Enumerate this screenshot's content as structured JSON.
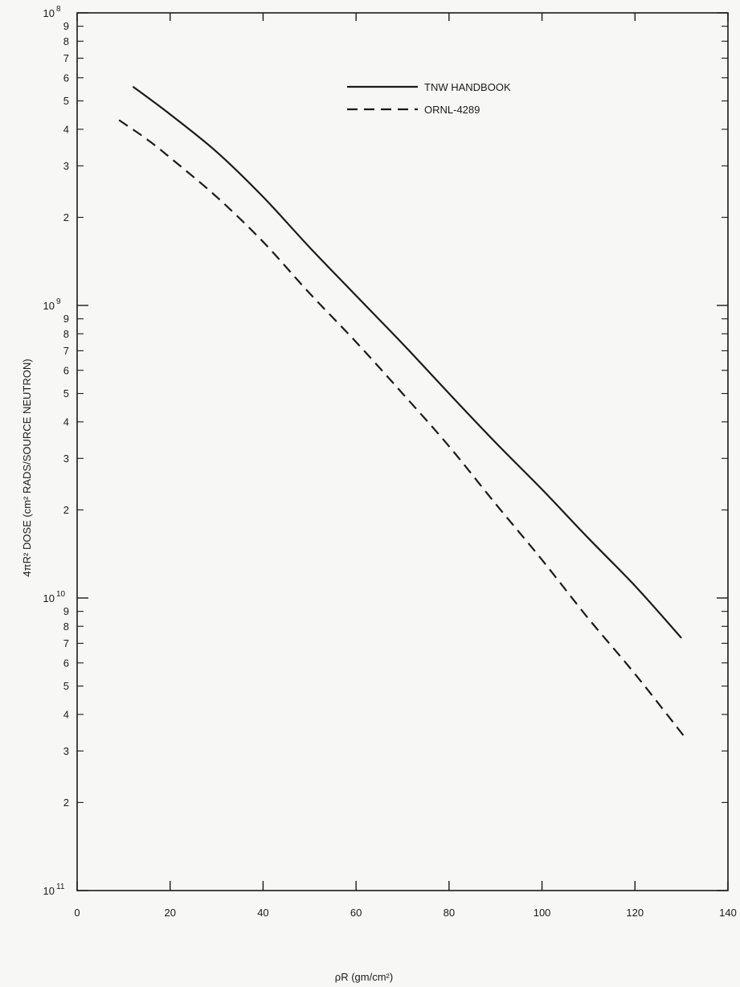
{
  "chart_data": {
    "type": "line",
    "title": "",
    "xlabel": "ρR (gm/cm²)",
    "ylabel": "4πR² DOSE (cm² RADS/SOURCE NEUTRON)",
    "xlim": [
      0,
      140
    ],
    "ylim": [
      1e-11,
      1e-08
    ],
    "yscale": "log",
    "grid": false,
    "legend_position": "top-center",
    "x_ticks": [
      0,
      20,
      40,
      60,
      80,
      100,
      120,
      140
    ],
    "y_decades": [
      {
        "mantissa": "10",
        "exponent": "8",
        "value": 1e-08
      },
      {
        "mantissa": "10",
        "exponent": "9",
        "value": 1e-09
      },
      {
        "mantissa": "10",
        "exponent": "10",
        "value": 1e-10
      },
      {
        "mantissa": "10",
        "exponent": "11",
        "value": 1e-11
      }
    ],
    "y_minor_labels": [
      "9",
      "8",
      "7",
      "6",
      "5",
      "4",
      "3",
      "2"
    ],
    "series": [
      {
        "name": "TNW HANDBOOK",
        "style": "solid",
        "x": [
          12,
          20,
          30,
          40,
          50,
          60,
          70,
          80,
          90,
          100,
          110,
          120,
          130
        ],
        "y": [
          5.6e-09,
          4.5e-09,
          3.35e-09,
          2.35e-09,
          1.58e-09,
          1.08e-09,
          7.4e-10,
          5e-10,
          3.4e-10,
          2.35e-10,
          1.6e-10,
          1.1e-10,
          7.3e-11
        ]
      },
      {
        "name": "ORNL-4289",
        "style": "dashed",
        "x": [
          9,
          15,
          20,
          30,
          40,
          50,
          60,
          70,
          80,
          90,
          100,
          110,
          120,
          131
        ],
        "y": [
          4.3e-09,
          3.7e-09,
          3.2e-09,
          2.35e-09,
          1.65e-09,
          1.1e-09,
          7.5e-10,
          5e-10,
          3.3e-10,
          2.1e-10,
          1.35e-10,
          8.5e-11,
          5.5e-11,
          3.3e-11
        ]
      }
    ]
  }
}
